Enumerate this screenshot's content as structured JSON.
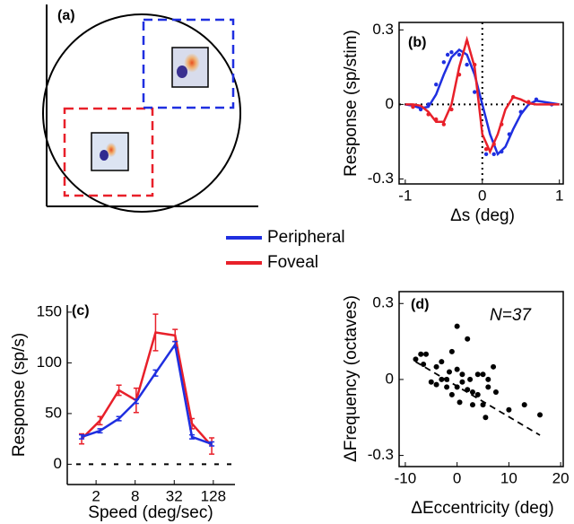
{
  "chart_data": [
    {
      "type": "diagram",
      "label": "(a)"
    },
    {
      "type": "line",
      "label": "(b)",
      "x": [
        -1,
        -0.9,
        -0.8,
        -0.7,
        -0.6,
        -0.5,
        -0.4,
        -0.3,
        -0.2,
        -0.1,
        0,
        0.1,
        0.2,
        0.3,
        0.4,
        0.5,
        0.6,
        0.7,
        0.8,
        0.9,
        1
      ],
      "series": [
        {
          "name": "Peripheral",
          "color": "#1f2fe0",
          "values": [
            0,
            -0.005,
            -0.015,
            -0.01,
            0.04,
            0.12,
            0.19,
            0.22,
            0.2,
            0.12,
            0,
            -0.12,
            -0.2,
            -0.17,
            -0.1,
            -0.04,
            0,
            0.015,
            0.01,
            0.005,
            0
          ],
          "scatter_x": [
            -0.8,
            -0.7,
            -0.6,
            -0.5,
            -0.45,
            -0.4,
            -0.3,
            -0.2,
            -0.1,
            0.05,
            0.15,
            0.25,
            0.35,
            0.5,
            0.7,
            0.9
          ],
          "scatter_y": [
            -0.02,
            0,
            0.08,
            0.17,
            0.2,
            0.21,
            0.2,
            0.16,
            0.05,
            -0.2,
            -0.2,
            -0.19,
            -0.12,
            -0.03,
            0.02,
            0
          ]
        },
        {
          "name": "Foveal",
          "color": "#e8202a",
          "values": [
            0,
            0,
            -0.005,
            -0.03,
            -0.07,
            -0.07,
            0,
            0.15,
            0.26,
            0.15,
            -0.12,
            -0.19,
            -0.12,
            -0.02,
            0.03,
            0.02,
            0.005,
            0,
            0,
            0,
            0
          ],
          "scatter_x": [
            -0.9,
            -0.7,
            -0.6,
            -0.5,
            -0.4,
            -0.3,
            -0.2,
            -0.1,
            0.05,
            0.15,
            0.25,
            0.4,
            0.6
          ],
          "scatter_y": [
            -0.01,
            -0.04,
            -0.06,
            -0.08,
            -0.02,
            0.12,
            0.25,
            0.16,
            -0.18,
            -0.16,
            -0.08,
            0.03,
            0.01
          ]
        }
      ],
      "xlim": [
        -1.08,
        1.05
      ],
      "ylim": [
        -0.32,
        0.33
      ],
      "xticks": [
        -1,
        0,
        1
      ],
      "yticks": [
        -0.3,
        0,
        0.3
      ],
      "xlabel": "Δs (deg)",
      "ylabel": "Response (sp/stim)",
      "zero_lines": true
    },
    {
      "type": "line",
      "label": "(c)",
      "log_x": true,
      "x": [
        1.2,
        2.3,
        4.5,
        8.3,
        16.5,
        33,
        60,
        121
      ],
      "series": [
        {
          "name": "Foveal",
          "color": "#e8202a",
          "values": [
            25,
            43,
            73,
            63,
            130,
            127,
            40,
            18
          ],
          "errors": [
            5,
            4,
            5,
            12,
            18,
            6,
            5,
            8
          ]
        },
        {
          "name": "Peripheral",
          "color": "#1f2fe0",
          "values": [
            27,
            33,
            45,
            62,
            90,
            118,
            27,
            20
          ],
          "errors": [
            2,
            2,
            2,
            2,
            3,
            3,
            2,
            2
          ]
        }
      ],
      "xlim": [
        0.72,
        276
      ],
      "ylim": [
        -20,
        157
      ],
      "xticks": [
        2,
        8,
        32,
        128
      ],
      "yticks": [
        0,
        50,
        100,
        150
      ],
      "xlabel": "Speed (deg/sec)",
      "ylabel": "Response (sp/s)",
      "zero_line": true
    },
    {
      "type": "scatter",
      "label": "(d)",
      "annotation": "N=37",
      "x": [
        -8,
        -7,
        -6.5,
        -6,
        -5,
        -4,
        -4,
        -3,
        -3,
        -2,
        -2,
        -1.5,
        -1,
        -1,
        0,
        0,
        0,
        0.5,
        1,
        1,
        2,
        2,
        2.5,
        3,
        3,
        4,
        4,
        5,
        5,
        5.5,
        6,
        6,
        7,
        7.5,
        10,
        13,
        16
      ],
      "values": [
        0.08,
        0.1,
        0.06,
        0.1,
        -0.01,
        0.05,
        -0.02,
        0.07,
        0,
        0,
        -0.03,
        0.03,
        0.11,
        -0.06,
        0.21,
        0.04,
        -0.03,
        -0.09,
        0.02,
        -0.01,
        0.16,
        -0.04,
        0,
        -0.05,
        -0.1,
        -0.06,
        0.02,
        0.02,
        -0.1,
        -0.15,
        0,
        -0.03,
        0.05,
        -0.05,
        -0.12,
        -0.1,
        -0.14
      ],
      "fit_x": [
        -8,
        16
      ],
      "fit_y": [
        0.07,
        -0.22
      ],
      "xlim": [
        -11.2,
        20.5
      ],
      "ylim": [
        -0.344,
        0.347
      ],
      "xticks": [
        -10,
        0,
        10,
        20
      ],
      "yticks": [
        -0.3,
        0,
        0.3
      ],
      "xlabel": "ΔEccentricity (deg)",
      "ylabel": "ΔFrequency (octaves)"
    }
  ]
}
